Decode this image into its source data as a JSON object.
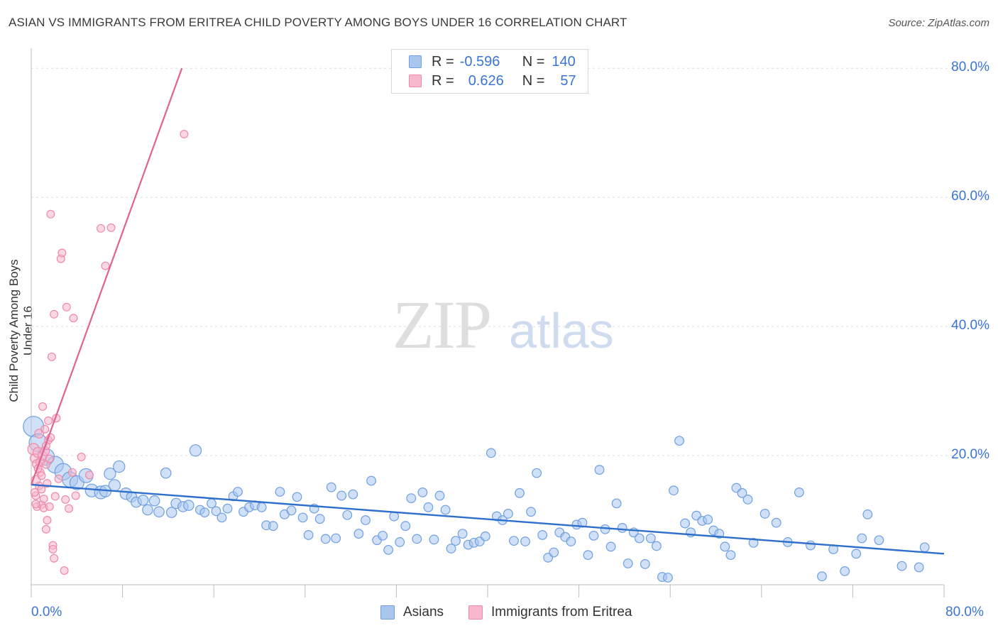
{
  "title": "ASIAN VS IMMIGRANTS FROM ERITREA CHILD POVERTY AMONG BOYS UNDER 16 CORRELATION CHART",
  "source": "Source: ZipAtlas.com",
  "watermark": {
    "zip": "ZIP",
    "atlas": "atlas"
  },
  "legend": {
    "asians": {
      "r_label": "R =",
      "r_value": "-0.596",
      "n_label": "N =",
      "n_value": "140"
    },
    "eritrea": {
      "r_label": "R =",
      "r_value": "0.626",
      "n_label": "N =",
      "n_value": "57"
    }
  },
  "bottom_legend": {
    "asians": "Asians",
    "eritrea": "Immigrants from Eritrea"
  },
  "colors": {
    "asians_fill": "#a9c6ef",
    "asians_stroke": "#6f9fe0",
    "asians_line": "#2f6fcc",
    "eritrea_fill": "#f7b7cc",
    "eritrea_stroke": "#ee8aab",
    "eritrea_line": "#e0638f",
    "tick_text": "#3b74d4"
  },
  "chart_data": {
    "type": "scatter",
    "title": "ASIAN VS IMMIGRANTS FROM ERITREA CHILD POVERTY AMONG BOYS UNDER 16 CORRELATION CHART",
    "xlabel": "",
    "ylabel": "Child Poverty Among Boys Under 16",
    "xlim": [
      0,
      80
    ],
    "ylim": [
      0,
      82
    ],
    "x_tick_labels": [
      "0.0%",
      "80.0%"
    ],
    "y_tick_labels": [
      "20.0%",
      "40.0%",
      "60.0%",
      "80.0%"
    ],
    "y_ticks": [
      20,
      40,
      60,
      80
    ],
    "grid": true,
    "series": [
      {
        "name": "Asians",
        "r": -0.596,
        "n": 140,
        "trend": {
          "x": [
            0,
            80
          ],
          "y": [
            15.5,
            4.8
          ]
        },
        "points": [
          [
            0.2,
            24.5,
            1.6
          ],
          [
            0.6,
            22.0,
            1.4
          ],
          [
            1.3,
            19.8,
            1.3
          ],
          [
            2.1,
            18.6,
            1.3
          ],
          [
            2.8,
            17.5,
            1.3
          ],
          [
            3.4,
            16.3,
            1.2
          ],
          [
            4.0,
            15.8,
            1.1
          ],
          [
            4.8,
            16.9,
            1.1
          ],
          [
            5.3,
            14.6,
            1.0
          ],
          [
            6.1,
            14.3,
            1.0
          ],
          [
            6.5,
            14.5,
            0.9
          ],
          [
            6.9,
            17.2,
            0.9
          ],
          [
            7.3,
            15.4,
            0.9
          ],
          [
            7.7,
            18.3,
            0.9
          ],
          [
            8.3,
            14.1,
            0.9
          ],
          [
            8.8,
            13.6,
            0.8
          ],
          [
            9.2,
            12.8,
            0.8
          ],
          [
            9.8,
            13.1,
            0.8
          ],
          [
            10.2,
            11.6,
            0.8
          ],
          [
            10.8,
            13.0,
            0.8
          ],
          [
            11.2,
            11.3,
            0.8
          ],
          [
            11.8,
            17.3,
            0.8
          ],
          [
            12.3,
            11.2,
            0.8
          ],
          [
            12.7,
            12.6,
            0.8
          ],
          [
            13.3,
            12.1,
            0.8
          ],
          [
            13.8,
            12.3,
            0.8
          ],
          [
            14.4,
            20.8,
            0.9
          ],
          [
            14.8,
            11.6,
            0.7
          ],
          [
            15.2,
            11.2,
            0.7
          ],
          [
            15.8,
            12.6,
            0.7
          ],
          [
            16.2,
            11.4,
            0.7
          ],
          [
            16.7,
            10.4,
            0.7
          ],
          [
            17.2,
            11.8,
            0.7
          ],
          [
            17.7,
            13.7,
            0.7
          ],
          [
            18.1,
            14.4,
            0.7
          ],
          [
            18.6,
            11.3,
            0.7
          ],
          [
            19.1,
            12.0,
            0.7
          ],
          [
            19.6,
            12.3,
            0.7
          ],
          [
            20.2,
            12.0,
            0.7
          ],
          [
            20.6,
            9.2,
            0.7
          ],
          [
            21.2,
            9.1,
            0.7
          ],
          [
            21.8,
            14.4,
            0.7
          ],
          [
            22.2,
            10.9,
            0.7
          ],
          [
            22.8,
            11.5,
            0.7
          ],
          [
            23.3,
            13.6,
            0.7
          ],
          [
            23.8,
            10.4,
            0.7
          ],
          [
            24.3,
            7.7,
            0.7
          ],
          [
            24.8,
            11.8,
            0.7
          ],
          [
            25.3,
            10.2,
            0.7
          ],
          [
            25.8,
            7.1,
            0.7
          ],
          [
            26.3,
            15.1,
            0.7
          ],
          [
            26.7,
            7.2,
            0.7
          ],
          [
            27.2,
            13.8,
            0.7
          ],
          [
            27.7,
            10.8,
            0.7
          ],
          [
            28.2,
            14.0,
            0.7
          ],
          [
            28.7,
            7.9,
            0.7
          ],
          [
            29.3,
            10.0,
            0.7
          ],
          [
            29.8,
            16.1,
            0.7
          ],
          [
            30.3,
            6.9,
            0.7
          ],
          [
            30.8,
            7.6,
            0.7
          ],
          [
            31.3,
            5.4,
            0.7
          ],
          [
            31.8,
            10.6,
            0.7
          ],
          [
            32.3,
            6.6,
            0.7
          ],
          [
            32.8,
            9.1,
            0.7
          ],
          [
            33.3,
            13.4,
            0.7
          ],
          [
            33.8,
            7.1,
            0.7
          ],
          [
            34.3,
            14.3,
            0.7
          ],
          [
            34.8,
            12.0,
            0.7
          ],
          [
            35.3,
            7.0,
            0.7
          ],
          [
            35.8,
            13.8,
            0.7
          ],
          [
            36.3,
            11.6,
            0.7
          ],
          [
            36.8,
            5.6,
            0.7
          ],
          [
            37.2,
            6.8,
            0.7
          ],
          [
            37.8,
            7.9,
            0.7
          ],
          [
            38.3,
            6.2,
            0.7
          ],
          [
            38.8,
            6.5,
            0.7
          ],
          [
            39.3,
            6.7,
            0.7
          ],
          [
            39.8,
            7.5,
            0.7
          ],
          [
            40.3,
            20.4,
            0.7
          ],
          [
            40.8,
            10.6,
            0.7
          ],
          [
            41.3,
            10.0,
            0.7
          ],
          [
            41.8,
            11.0,
            0.7
          ],
          [
            42.3,
            6.8,
            0.7
          ],
          [
            42.8,
            14.2,
            0.7
          ],
          [
            43.3,
            6.7,
            0.7
          ],
          [
            43.8,
            11.3,
            0.7
          ],
          [
            44.3,
            17.3,
            0.7
          ],
          [
            44.8,
            7.7,
            0.7
          ],
          [
            45.3,
            4.2,
            0.7
          ],
          [
            45.8,
            5.0,
            0.7
          ],
          [
            46.3,
            8.1,
            0.7
          ],
          [
            46.8,
            7.4,
            0.7
          ],
          [
            47.3,
            6.7,
            0.7
          ],
          [
            47.8,
            9.3,
            0.7
          ],
          [
            48.3,
            9.6,
            0.7
          ],
          [
            48.8,
            4.6,
            0.7
          ],
          [
            49.3,
            7.6,
            0.7
          ],
          [
            49.8,
            17.8,
            0.7
          ],
          [
            50.3,
            8.6,
            0.7
          ],
          [
            50.8,
            5.9,
            0.7
          ],
          [
            51.3,
            12.6,
            0.7
          ],
          [
            51.8,
            8.8,
            0.7
          ],
          [
            52.3,
            3.3,
            0.7
          ],
          [
            52.8,
            8.1,
            0.7
          ],
          [
            53.3,
            7.2,
            0.7
          ],
          [
            53.8,
            3.2,
            0.7
          ],
          [
            54.3,
            7.2,
            0.7
          ],
          [
            54.8,
            6.0,
            0.7
          ],
          [
            55.3,
            1.2,
            0.7
          ],
          [
            55.8,
            1.1,
            0.7
          ],
          [
            56.3,
            14.6,
            0.7
          ],
          [
            56.8,
            22.3,
            0.7
          ],
          [
            57.3,
            9.5,
            0.7
          ],
          [
            57.8,
            8.1,
            0.7
          ],
          [
            58.3,
            10.7,
            0.7
          ],
          [
            58.8,
            9.9,
            0.7
          ],
          [
            59.3,
            10.1,
            0.7
          ],
          [
            59.8,
            8.4,
            0.7
          ],
          [
            60.3,
            7.9,
            0.7
          ],
          [
            60.8,
            5.9,
            0.7
          ],
          [
            61.3,
            4.6,
            0.7
          ],
          [
            61.8,
            15.0,
            0.7
          ],
          [
            62.3,
            14.2,
            0.7
          ],
          [
            62.8,
            13.2,
            0.7
          ],
          [
            63.3,
            6.5,
            0.7
          ],
          [
            64.3,
            11.0,
            0.7
          ],
          [
            65.3,
            9.6,
            0.7
          ],
          [
            66.3,
            6.6,
            0.7
          ],
          [
            67.3,
            14.3,
            0.7
          ],
          [
            68.3,
            6.1,
            0.7
          ],
          [
            69.3,
            1.3,
            0.7
          ],
          [
            70.3,
            5.5,
            0.7
          ],
          [
            71.3,
            2.1,
            0.7
          ],
          [
            72.3,
            4.8,
            0.7
          ],
          [
            72.8,
            7.2,
            0.7
          ],
          [
            73.3,
            10.9,
            0.7
          ],
          [
            74.3,
            6.9,
            0.7
          ],
          [
            76.3,
            2.9,
            0.7
          ],
          [
            77.8,
            2.7,
            0.7
          ],
          [
            78.3,
            5.8,
            0.7
          ]
        ]
      },
      {
        "name": "Immigrants from Eritrea",
        "r": 0.626,
        "n": 57,
        "trend": {
          "x": [
            0,
            13.2
          ],
          "y": [
            15.5,
            80
          ]
        },
        "points": [
          [
            0.2,
            21.0,
            0.9
          ],
          [
            0.3,
            19.6,
            0.7
          ],
          [
            0.4,
            16.2,
            0.7
          ],
          [
            0.4,
            13.8,
            0.6
          ],
          [
            0.5,
            12.1,
            0.6
          ],
          [
            0.5,
            18.7,
            0.7
          ],
          [
            0.6,
            20.5,
            0.8
          ],
          [
            0.7,
            15.3,
            0.6
          ],
          [
            0.7,
            23.4,
            0.7
          ],
          [
            0.8,
            19.0,
            0.7
          ],
          [
            0.8,
            17.4,
            0.6
          ],
          [
            0.9,
            12.4,
            0.6
          ],
          [
            0.9,
            14.8,
            0.6
          ],
          [
            1.0,
            27.6,
            0.6
          ],
          [
            1.0,
            20.0,
            0.7
          ],
          [
            1.1,
            11.9,
            0.6
          ],
          [
            1.1,
            13.3,
            0.6
          ],
          [
            1.2,
            20.7,
            0.7
          ],
          [
            1.2,
            24.1,
            0.6
          ],
          [
            1.3,
            18.6,
            0.6
          ],
          [
            1.3,
            8.6,
            0.6
          ],
          [
            1.4,
            10.0,
            0.6
          ],
          [
            1.4,
            15.7,
            0.6
          ],
          [
            1.5,
            22.4,
            0.6
          ],
          [
            1.5,
            25.4,
            0.6
          ],
          [
            1.6,
            19.5,
            0.6
          ],
          [
            1.6,
            12.1,
            0.6
          ],
          [
            1.7,
            57.4,
            0.6
          ],
          [
            1.8,
            35.3,
            0.6
          ],
          [
            1.9,
            6.1,
            0.6
          ],
          [
            1.9,
            5.5,
            0.6
          ],
          [
            2.0,
            4.1,
            0.6
          ],
          [
            2.1,
            13.7,
            0.6
          ],
          [
            2.2,
            25.8,
            0.6
          ],
          [
            2.0,
            41.9,
            0.6
          ],
          [
            2.6,
            50.5,
            0.6
          ],
          [
            2.7,
            51.4,
            0.6
          ],
          [
            2.9,
            2.2,
            0.6
          ],
          [
            3.0,
            13.2,
            0.6
          ],
          [
            3.1,
            43.0,
            0.6
          ],
          [
            3.3,
            11.8,
            0.6
          ],
          [
            3.6,
            17.4,
            0.6
          ],
          [
            3.7,
            41.3,
            0.6
          ],
          [
            3.9,
            13.8,
            0.6
          ],
          [
            4.4,
            19.8,
            0.6
          ],
          [
            5.1,
            17.0,
            0.6
          ],
          [
            6.1,
            55.2,
            0.6
          ],
          [
            6.5,
            49.4,
            0.6
          ],
          [
            7.0,
            55.3,
            0.6
          ],
          [
            13.4,
            69.8,
            0.6
          ],
          [
            0.3,
            14.3,
            0.6
          ],
          [
            0.6,
            18.0,
            0.6
          ],
          [
            0.9,
            16.9,
            0.6
          ],
          [
            1.3,
            21.5,
            0.6
          ],
          [
            1.7,
            22.8,
            0.6
          ],
          [
            0.4,
            12.5,
            0.6
          ],
          [
            2.4,
            16.4,
            0.6
          ]
        ]
      }
    ]
  }
}
